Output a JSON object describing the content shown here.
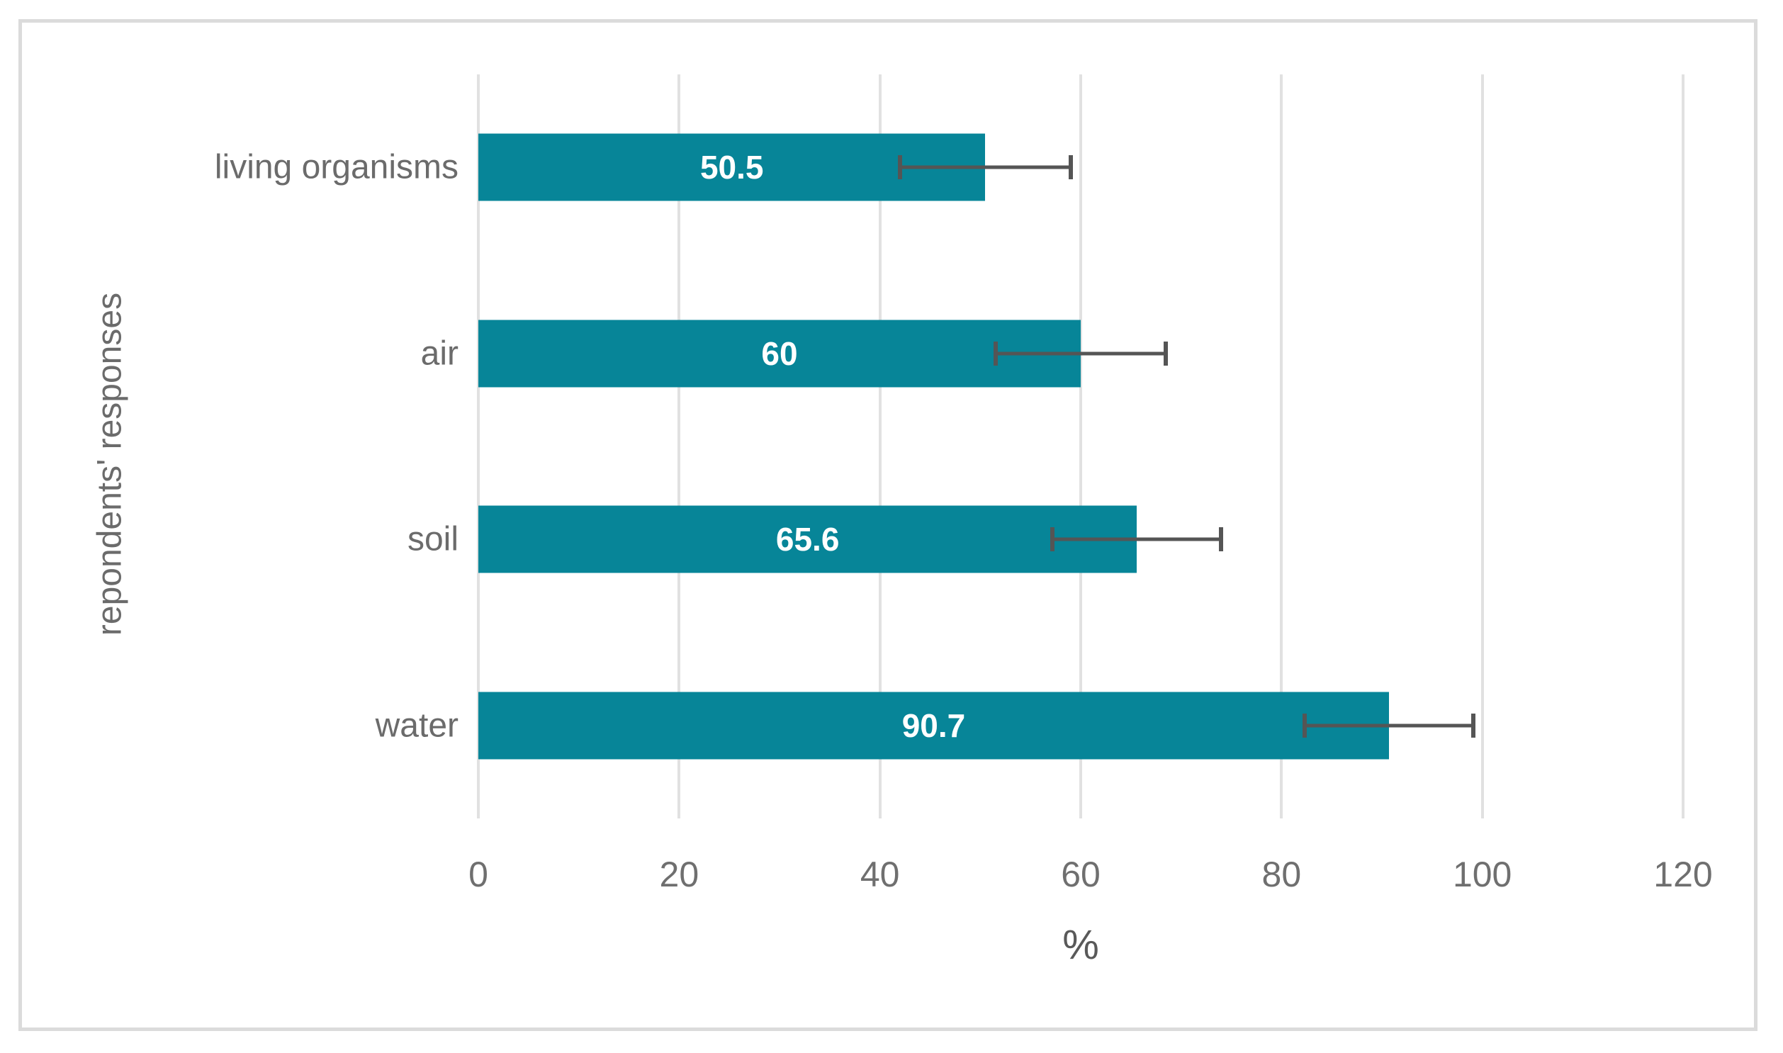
{
  "chart_data": {
    "type": "bar",
    "orientation": "horizontal",
    "title": "",
    "xlabel": "%",
    "ylabel": "repondents' responses",
    "categories": [
      "living organisms",
      "air",
      "soil",
      "water"
    ],
    "values": [
      50.5,
      60,
      65.6,
      90.7
    ],
    "value_labels": [
      "50.5",
      "60",
      "65.6",
      "90.7"
    ],
    "error_bars": {
      "type": "symmetric",
      "values": [
        8.5,
        8.5,
        8.4,
        8.4
      ]
    },
    "xlim": [
      0,
      120
    ],
    "xticks": [
      0,
      20,
      40,
      60,
      80,
      100,
      120
    ],
    "xtick_labels": [
      "0",
      "20",
      "40",
      "60",
      "80",
      "100",
      "120"
    ],
    "grid": "vertical",
    "legend": "none",
    "colors": {
      "bar": "#078598",
      "value_label": "#ffffff",
      "gridline": "#e1e1e1",
      "error_bar": "#555555",
      "axis_text": "#6b6b6b",
      "figure_border": "#dbdbdb",
      "background": "#ffffff"
    }
  }
}
